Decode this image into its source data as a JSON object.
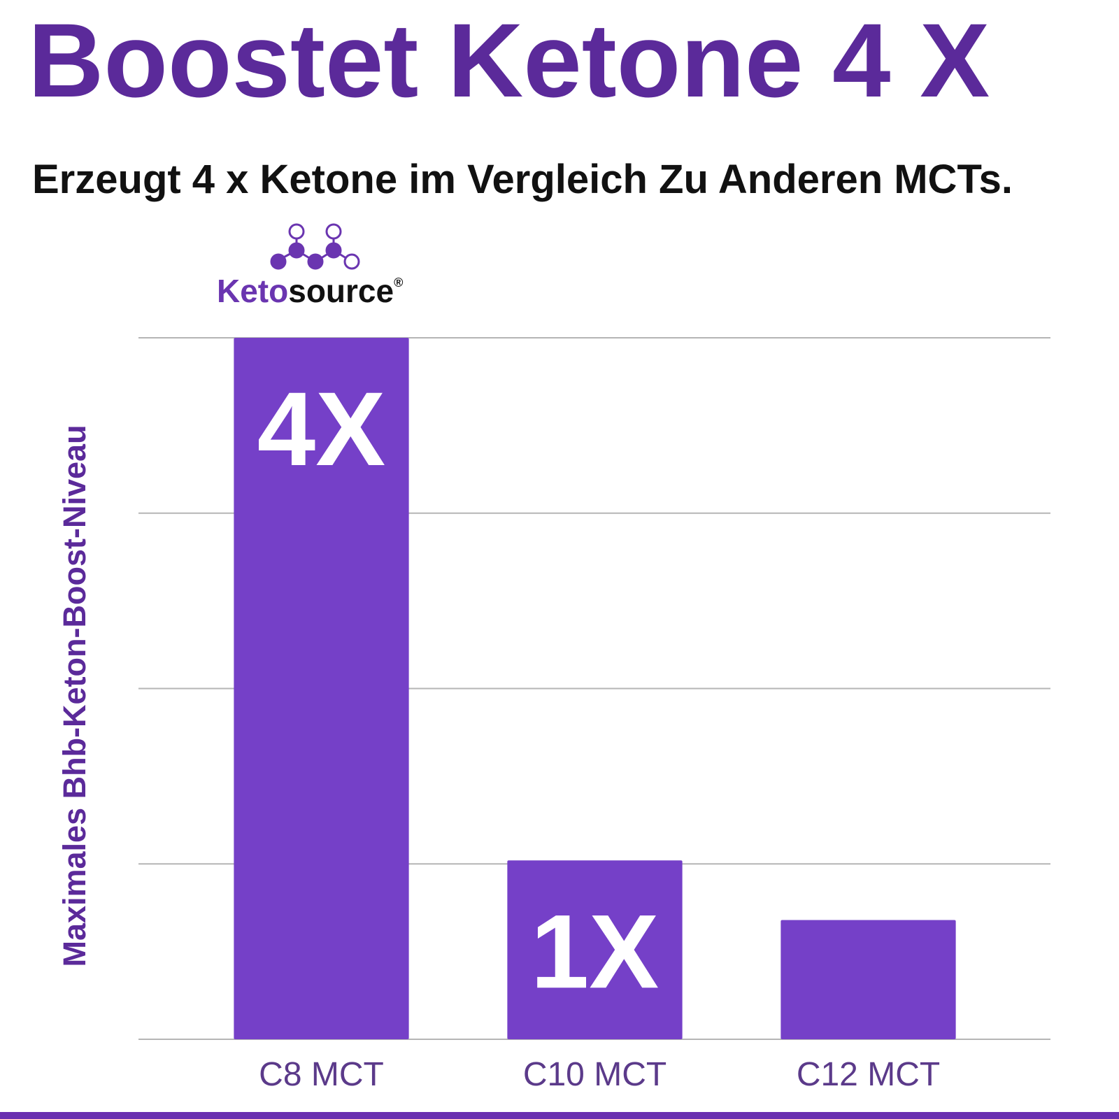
{
  "chart_data": {
    "type": "bar",
    "title": "Boostet Ketone 4 X",
    "subtitle": "Erzeugt 4 x Ketone im Vergleich Zu Anderen MCTs.",
    "logo": {
      "primary": "Keto",
      "secondary": "source",
      "registered": "®"
    },
    "y_label": "Maximales Bhb-Keton-Boost-Niveau",
    "categories": [
      "C8 MCT",
      "C10 MCT",
      "C12 MCT"
    ],
    "values": [
      4,
      1.02,
      0.68
    ],
    "value_labels": [
      "4X",
      "1X",
      null
    ],
    "color": "#7540c8",
    "ylim": [
      0,
      4
    ],
    "yticks": [
      0,
      1,
      2,
      3,
      4
    ],
    "show_ytick_labels": false,
    "grid": true
  }
}
